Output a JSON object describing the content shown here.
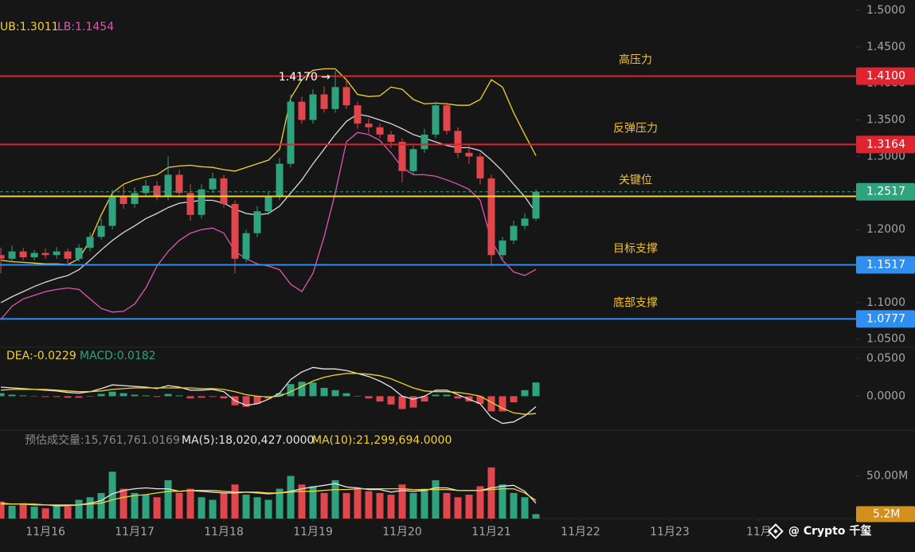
{
  "chart_data": {
    "type": "candlestick",
    "x": [
      15.5,
      15.625,
      15.75,
      15.875,
      16,
      16.125,
      16.25,
      16.375,
      16.5,
      16.625,
      16.75,
      16.875,
      17,
      17.125,
      17.25,
      17.375,
      17.5,
      17.625,
      17.75,
      17.875,
      18,
      18.125,
      18.25,
      18.375,
      18.5,
      18.625,
      18.75,
      18.875,
      19,
      19.125,
      19.25,
      19.375,
      19.5,
      19.625,
      19.75,
      19.875,
      20,
      20.125,
      20.25,
      20.375,
      20.5,
      20.625,
      20.75,
      20.875,
      21,
      21.125,
      21.25,
      21.375,
      21.5
    ],
    "xlim": [
      15.49,
      25.09
    ],
    "xticks": [
      {
        "value": 16,
        "label": "11月16"
      },
      {
        "value": 17,
        "label": "11月17"
      },
      {
        "value": 18,
        "label": "11月18"
      },
      {
        "value": 19,
        "label": "11月19"
      },
      {
        "value": 20,
        "label": "11月20"
      },
      {
        "value": 21,
        "label": "11月21"
      },
      {
        "value": 22,
        "label": "11月22"
      },
      {
        "value": 23,
        "label": "11月23"
      },
      {
        "value": 24,
        "label": "11月"
      }
    ],
    "open": [
      1.165,
      1.16,
      1.17,
      1.162,
      1.168,
      1.165,
      1.17,
      1.16,
      1.175,
      1.19,
      1.205,
      1.245,
      1.235,
      1.25,
      1.26,
      1.245,
      1.275,
      1.25,
      1.22,
      1.255,
      1.27,
      1.235,
      1.16,
      1.195,
      1.225,
      1.245,
      1.29,
      1.375,
      1.35,
      1.385,
      1.365,
      1.395,
      1.37,
      1.345,
      1.34,
      1.33,
      1.32,
      1.28,
      1.31,
      1.33,
      1.37,
      1.335,
      1.305,
      1.3,
      1.27,
      1.165,
      1.185,
      1.205,
      1.215
    ],
    "high": [
      1.175,
      1.178,
      1.175,
      1.172,
      1.174,
      1.176,
      1.174,
      1.18,
      1.196,
      1.215,
      1.255,
      1.262,
      1.258,
      1.268,
      1.266,
      1.3,
      1.282,
      1.262,
      1.262,
      1.278,
      1.275,
      1.24,
      1.2,
      1.232,
      1.252,
      1.298,
      1.385,
      1.382,
      1.392,
      1.396,
      1.417,
      1.405,
      1.375,
      1.352,
      1.345,
      1.335,
      1.325,
      1.315,
      1.338,
      1.375,
      1.374,
      1.34,
      1.315,
      1.305,
      1.275,
      1.19,
      1.212,
      1.222,
      1.255
    ],
    "low": [
      1.14,
      1.155,
      1.158,
      1.158,
      1.16,
      1.16,
      1.152,
      1.156,
      1.17,
      1.186,
      1.2,
      1.228,
      1.23,
      1.245,
      1.24,
      1.24,
      1.245,
      1.212,
      1.215,
      1.25,
      1.23,
      1.14,
      1.155,
      1.19,
      1.22,
      1.24,
      1.285,
      1.345,
      1.345,
      1.36,
      1.36,
      1.365,
      1.338,
      1.332,
      1.325,
      1.312,
      1.265,
      1.275,
      1.305,
      1.325,
      1.33,
      1.298,
      1.29,
      1.262,
      1.15,
      1.158,
      1.18,
      1.2,
      1.212
    ],
    "close": [
      1.16,
      1.17,
      1.162,
      1.168,
      1.165,
      1.17,
      1.16,
      1.175,
      1.19,
      1.205,
      1.245,
      1.235,
      1.25,
      1.26,
      1.245,
      1.275,
      1.25,
      1.22,
      1.255,
      1.27,
      1.235,
      1.16,
      1.195,
      1.225,
      1.245,
      1.29,
      1.375,
      1.35,
      1.385,
      1.365,
      1.395,
      1.37,
      1.345,
      1.34,
      1.33,
      1.32,
      1.28,
      1.31,
      1.33,
      1.37,
      1.335,
      1.305,
      1.3,
      1.27,
      1.165,
      1.185,
      1.205,
      1.215,
      1.2517
    ],
    "up_color": "#2fa37e",
    "down_color": "#e0464b",
    "ylim": [
      1.0388,
      1.5142
    ],
    "yticks": [
      {
        "value": 1.5,
        "label": "1.5000"
      },
      {
        "value": 1.45,
        "label": "1.4500"
      },
      {
        "value": 1.4,
        "label": "1.4000"
      },
      {
        "value": 1.35,
        "label": "1.3500"
      },
      {
        "value": 1.3,
        "label": "1.3000"
      },
      {
        "value": 1.25,
        "label": "1.2500"
      },
      {
        "value": 1.2,
        "label": "1.2000"
      },
      {
        "value": 1.15,
        "label": "1.1500"
      },
      {
        "value": 1.1,
        "label": "1.1000"
      },
      {
        "value": 1.05,
        "label": "1.0500"
      }
    ],
    "bands": [
      {
        "label": "UB:",
        "value_label": "1.3011",
        "color": "#f2d230",
        "values": [
          1.158,
          1.156,
          1.155,
          1.154,
          1.153,
          1.153,
          1.152,
          1.16,
          1.185,
          1.22,
          1.25,
          1.262,
          1.268,
          1.272,
          1.275,
          1.285,
          1.287,
          1.288,
          1.286,
          1.285,
          1.282,
          1.28,
          1.285,
          1.29,
          1.295,
          1.31,
          1.38,
          1.405,
          1.418,
          1.42,
          1.42,
          1.405,
          1.385,
          1.382,
          1.383,
          1.395,
          1.392,
          1.378,
          1.372,
          1.373,
          1.372,
          1.37,
          1.37,
          1.378,
          1.405,
          1.395,
          1.36,
          1.33,
          1.3011
        ]
      },
      {
        "color": "#d8d8d8",
        "values": [
          1.1,
          1.108,
          1.115,
          1.122,
          1.128,
          1.133,
          1.137,
          1.145,
          1.158,
          1.172,
          1.185,
          1.196,
          1.205,
          1.215,
          1.222,
          1.23,
          1.236,
          1.238,
          1.24,
          1.24,
          1.236,
          1.228,
          1.222,
          1.22,
          1.222,
          1.232,
          1.25,
          1.268,
          1.29,
          1.31,
          1.33,
          1.348,
          1.358,
          1.355,
          1.35,
          1.345,
          1.338,
          1.33,
          1.325,
          1.32,
          1.315,
          1.312,
          1.312,
          1.308,
          1.295,
          1.28,
          1.262,
          1.245,
          1.223
        ]
      },
      {
        "label": "LB:",
        "value_label": "1.1454",
        "color": "#e055b5",
        "values": [
          1.077,
          1.095,
          1.105,
          1.11,
          1.115,
          1.118,
          1.12,
          1.118,
          1.105,
          1.092,
          1.087,
          1.088,
          1.098,
          1.12,
          1.15,
          1.17,
          1.185,
          1.195,
          1.2,
          1.202,
          1.195,
          1.17,
          1.16,
          1.153,
          1.15,
          1.145,
          1.125,
          1.115,
          1.14,
          1.19,
          1.25,
          1.32,
          1.333,
          1.33,
          1.322,
          1.305,
          1.285,
          1.275,
          1.275,
          1.273,
          1.268,
          1.262,
          1.255,
          1.24,
          1.185,
          1.158,
          1.142,
          1.137,
          1.1454
        ]
      }
    ],
    "levels": [
      {
        "name": "高压力",
        "value": 1.41,
        "label": "1.4100",
        "color": "#e0242f"
      },
      {
        "name": "反弹压力",
        "value": 1.3164,
        "label": "1.3164",
        "color": "#e0242f"
      },
      {
        "name": "关键位",
        "value": 1.2454,
        "color": "#f2d230"
      },
      {
        "name": "目标支撑",
        "value": 1.1517,
        "label": "1.1517",
        "color": "#2f8ff0"
      },
      {
        "name": "底部支撑",
        "value": 1.0777,
        "label": "1.0777",
        "color": "#2f8ff0"
      }
    ],
    "level_text_color": "#f2c232",
    "current": {
      "value": 1.2517,
      "label": "1.2517",
      "color": "#2fa37e"
    },
    "annotation": "1.4170 →",
    "macd": {
      "ylim": [
        -0.0448,
        0.0646
      ],
      "yticks": [
        {
          "value": 0.05,
          "label": "0.0500"
        },
        {
          "value": 0,
          "label": "0.0000"
        }
      ],
      "dif": {
        "color": "#e6e6e6",
        "values": [
          0.012,
          0.011,
          0.01,
          0.009,
          0.008,
          0.007,
          0.005,
          0.004,
          0.006,
          0.01,
          0.015,
          0.014,
          0.013,
          0.012,
          0.01,
          0.014,
          0.012,
          0.008,
          0.008,
          0.009,
          0.006,
          -0.006,
          -0.012,
          -0.01,
          -0.004,
          0.004,
          0.022,
          0.032,
          0.038,
          0.036,
          0.036,
          0.034,
          0.03,
          0.026,
          0.02,
          0.012,
          0.0,
          -0.004,
          0.0,
          0.008,
          0.008,
          0.002,
          -0.004,
          -0.01,
          -0.028,
          -0.036,
          -0.034,
          -0.026,
          -0.0138
        ]
      },
      "dea": {
        "label": "DEA:",
        "value_label": "-0.0229",
        "color": "#f2d230",
        "values": [
          0.008,
          0.009,
          0.009,
          0.009,
          0.009,
          0.008,
          0.007,
          0.006,
          0.006,
          0.007,
          0.009,
          0.01,
          0.011,
          0.011,
          0.011,
          0.011,
          0.011,
          0.011,
          0.01,
          0.01,
          0.009,
          0.006,
          0.002,
          0.0,
          -0.001,
          0.0,
          0.006,
          0.013,
          0.02,
          0.025,
          0.028,
          0.03,
          0.03,
          0.029,
          0.027,
          0.023,
          0.017,
          0.011,
          0.007,
          0.006,
          0.006,
          0.005,
          0.003,
          0.0,
          -0.008,
          -0.016,
          -0.022,
          -0.024,
          -0.0229
        ]
      },
      "hist": {
        "label": "MACD:",
        "value_label": "0.0182",
        "label_color": "#2fa37e",
        "values": [
          0.004,
          0.002,
          0.001,
          0,
          -0.001,
          -0.001,
          -0.002,
          -0.002,
          0,
          0.003,
          0.006,
          0.004,
          0.002,
          0.001,
          -0.001,
          0.003,
          0.001,
          -0.003,
          -0.002,
          -0.001,
          -0.003,
          -0.012,
          -0.014,
          -0.01,
          -0.003,
          0.004,
          0.016,
          0.019,
          0.018,
          0.011,
          0.008,
          0.004,
          0,
          -0.003,
          -0.007,
          -0.011,
          -0.017,
          -0.015,
          -0.007,
          0.002,
          0.002,
          -0.003,
          -0.007,
          -0.01,
          -0.02,
          -0.02,
          -0.008,
          0.008,
          0.0182
        ]
      }
    },
    "volume": {
      "ylim": [
        0,
        103770000
      ],
      "yticks": [
        {
          "value": 50000000,
          "label": "50.00M"
        }
      ],
      "estimate_label": "预估成交量:15,761,761.0169",
      "values": [
        20000000,
        15000000,
        18000000,
        14000000,
        12000000,
        16000000,
        14000000,
        22000000,
        25000000,
        30000000,
        55000000,
        35000000,
        30000000,
        28000000,
        25000000,
        45000000,
        30000000,
        35000000,
        25000000,
        22000000,
        30000000,
        40000000,
        28000000,
        25000000,
        22000000,
        35000000,
        50000000,
        40000000,
        38000000,
        30000000,
        45000000,
        30000000,
        35000000,
        32000000,
        30000000,
        28000000,
        40000000,
        30000000,
        35000000,
        45000000,
        30000000,
        25000000,
        28000000,
        38000000,
        60000000,
        40000000,
        30000000,
        25000000,
        5200000
      ],
      "current_label": "5.2M",
      "current_color": "#d4901c",
      "ma": [
        {
          "label": "MA(5):",
          "value_label": "18,020,427.0000",
          "color": "#e6e6e6",
          "values": [
            18000000,
            17000000,
            17000000,
            16000000,
            16000000,
            15000000,
            15000000,
            16000000,
            18000000,
            21000000,
            29000000,
            33000000,
            35000000,
            36000000,
            35000000,
            35000000,
            32000000,
            33000000,
            32000000,
            31000000,
            30000000,
            30000000,
            31000000,
            30000000,
            29000000,
            30000000,
            32000000,
            35000000,
            37000000,
            39000000,
            41000000,
            37000000,
            36000000,
            34000000,
            34000000,
            31000000,
            33000000,
            32000000,
            33000000,
            36000000,
            36000000,
            33000000,
            33000000,
            33000000,
            36000000,
            38000000,
            39000000,
            32000000,
            18020427
          ]
        },
        {
          "label": "MA(10):",
          "value_label": "21,299,694.0000",
          "color": "#f2d230",
          "values": [
            17000000,
            17000000,
            17000000,
            17000000,
            16000000,
            16000000,
            16000000,
            16000000,
            17000000,
            18000000,
            22000000,
            25000000,
            27000000,
            28000000,
            30000000,
            32000000,
            32000000,
            33000000,
            33000000,
            33000000,
            32000000,
            31000000,
            31000000,
            31000000,
            30000000,
            30000000,
            31000000,
            32000000,
            32000000,
            33000000,
            34000000,
            34000000,
            35000000,
            35000000,
            35000000,
            35000000,
            35000000,
            34000000,
            34000000,
            34000000,
            34000000,
            33000000,
            33000000,
            33000000,
            34000000,
            35000000,
            35000000,
            30000000,
            21299694
          ]
        }
      ]
    },
    "watermark": "@ Crypto 千玺"
  }
}
